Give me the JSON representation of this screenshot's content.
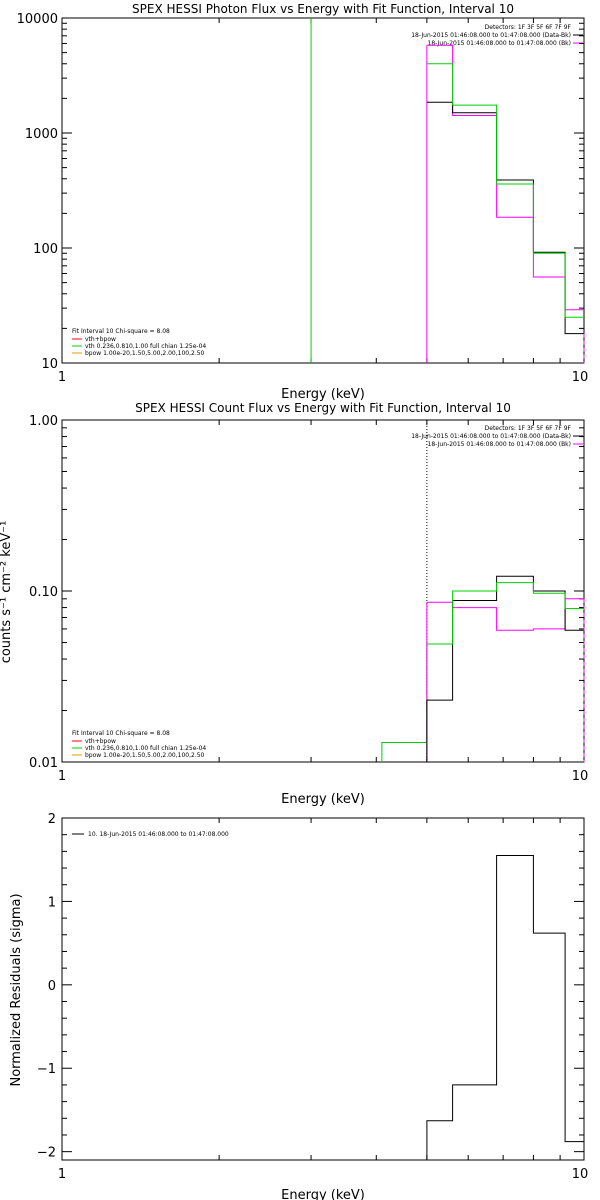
{
  "colors": {
    "data": "#000000",
    "background": "#ff00ff",
    "model": "#00d000",
    "vth": "#00d000",
    "bpow": "#e0a000",
    "total": "#ff0000"
  },
  "chart_data": [
    {
      "type": "line",
      "title": "SPEX HESSI Photon Flux vs Energy with Fit Function, Interval 10",
      "xlabel": "Energy (keV)",
      "ylabel": "",
      "xscale": "log",
      "yscale": "log",
      "xlim": [
        1,
        10
      ],
      "ylim": [
        10,
        10000
      ],
      "x_ticks": [
        "1",
        "10"
      ],
      "y_ticks": [
        "10",
        "100",
        "1000",
        "10000"
      ],
      "header": [
        "Detectors: 1F 3F 5F 6F 7F 9F",
        "18-Jun-2015 01:46:08.000 to 01:47:08.000 (Data-Bk)",
        "18-Jun-2015 01:46:08.000 to 01:47:08.000 (Bk)"
      ],
      "legend": [
        "Fit Interval 10   Chi-square = 8.08",
        "vth+bpow",
        "vth 0.236,0.810,1.00  full chian 1.25e-04",
        "bpow 1.00e-20,1.50,5.00,2.00,100,2.50"
      ],
      "fit_line": {
        "x": 3.0,
        "y_from": 10,
        "y_to": 10000
      },
      "edges": [
        5.0,
        5.6,
        6.8,
        8.0,
        9.2,
        10.0
      ],
      "series": [
        {
          "name": "Data-Bk",
          "values": [
            1850,
            1500,
            390,
            92,
            18
          ]
        },
        {
          "name": "vth+bpow",
          "values": [
            4000,
            1750,
            360,
            90,
            25
          ]
        },
        {
          "name": "Bk",
          "values": [
            5800,
            1420,
            185,
            56,
            29
          ]
        }
      ],
      "bk_marker": {
        "x": 5.0,
        "y_from": 10,
        "y_to": 5800
      }
    },
    {
      "type": "line",
      "title": "SPEX HESSI Count Flux vs Energy with Fit Function, Interval 10",
      "xlabel": "Energy (keV)",
      "ylabel": "counts s⁻¹ cm⁻² keV⁻¹",
      "xscale": "log",
      "yscale": "log",
      "xlim": [
        1,
        10
      ],
      "ylim": [
        0.01,
        1.0
      ],
      "x_ticks": [
        "1",
        "10"
      ],
      "y_ticks": [
        "0.01",
        "0.10",
        "1.00"
      ],
      "header": [
        "Detectors: 1F 3F 5F 6F 7F 9F",
        "18-Jun-2015 01:46:08.000 to 01:47:08.000 (Data-Bk)",
        "18-Jun-2015 01:46:08.000 to 01:47:08.000 (Bk)"
      ],
      "legend": [
        "Fit Interval 10   Chi-square = 8.08",
        "vth+bpow",
        "vth 0.236,0.810,1.00  full chian 1.25e-04",
        "bpow 1.00e-20,1.50,5.00,2.00,100,2.50"
      ],
      "fit_range_start": 5.0,
      "edges": [
        5.0,
        5.6,
        6.8,
        8.0,
        9.2,
        10.0
      ],
      "series": [
        {
          "name": "Data-Bk",
          "values": [
            0.023,
            0.088,
            0.122,
            0.1,
            0.059
          ]
        },
        {
          "name": "vth+bpow",
          "values": [
            0.049,
            0.1,
            0.112,
            0.097,
            0.079
          ]
        },
        {
          "name": "Bk",
          "values": [
            0.086,
            0.08,
            0.059,
            0.06,
            0.09
          ]
        }
      ],
      "model_low": {
        "x_from": 4.1,
        "x_to": 5.0,
        "value": 0.013
      }
    },
    {
      "type": "line",
      "title": "",
      "xlabel": "Energy (keV)",
      "ylabel": "Normalized Residuals (sigma)",
      "xscale": "log",
      "yscale": "linear",
      "xlim": [
        1,
        10
      ],
      "ylim": [
        -2.1,
        2.0
      ],
      "x_ticks": [
        "1",
        "10"
      ],
      "y_ticks": [
        "−2",
        "−1",
        "0",
        "1",
        "2"
      ],
      "legend": [
        "10. 18-Jun-2015 01:46:08.000 to 01:47:08.000"
      ],
      "edges": [
        5.0,
        5.6,
        6.8,
        8.0,
        9.2,
        10.0
      ],
      "values": [
        -1.63,
        -1.2,
        1.55,
        0.62,
        -1.88
      ]
    }
  ]
}
